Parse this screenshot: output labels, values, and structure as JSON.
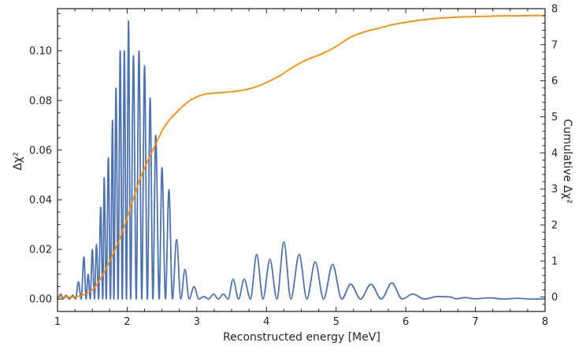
{
  "chart_data": {
    "type": "line",
    "xlabel": "Reconstructed energy [MeV]",
    "ylabel_left": "Δχ²",
    "ylabel_right": "Cumulative Δχ²",
    "xlim": [
      1,
      8
    ],
    "ylim_left": [
      -0.005,
      0.117
    ],
    "ylim_right": [
      -0.4,
      8.0
    ],
    "xticks": [
      "1",
      "2",
      "3",
      "4",
      "5",
      "6",
      "7",
      "8"
    ],
    "yticks_left": [
      "0.00",
      "0.02",
      "0.04",
      "0.06",
      "0.08",
      "0.10"
    ],
    "yticks_right": [
      "0",
      "1",
      "2",
      "3",
      "4",
      "5",
      "6",
      "7",
      "8"
    ],
    "legend": "none",
    "grid": false,
    "series": [
      {
        "axis": "left",
        "color": "#4c72b0",
        "x": [
          1.0,
          1.05,
          1.08,
          1.12,
          1.17,
          1.22,
          1.26,
          1.3,
          1.34,
          1.38,
          1.41,
          1.44,
          1.47,
          1.5,
          1.53,
          1.56,
          1.59,
          1.62,
          1.65,
          1.67,
          1.7,
          1.73,
          1.76,
          1.79,
          1.81,
          1.84,
          1.87,
          1.9,
          1.93,
          1.96,
          1.99,
          2.02,
          2.05,
          2.09,
          2.13,
          2.17,
          2.21,
          2.25,
          2.29,
          2.33,
          2.37,
          2.41,
          2.46,
          2.5,
          2.55,
          2.6,
          2.65,
          2.71,
          2.77,
          2.83,
          2.89,
          2.96,
          3.03,
          3.1,
          3.17,
          3.24,
          3.31,
          3.38,
          3.45,
          3.52,
          3.6,
          3.68,
          3.77,
          3.86,
          3.95,
          4.05,
          4.15,
          4.25,
          4.35,
          4.47,
          4.58,
          4.7,
          4.82,
          4.95,
          5.08,
          5.21,
          5.35,
          5.5,
          5.65,
          5.8,
          5.95,
          6.1,
          6.27,
          6.45,
          6.65,
          6.72,
          6.85,
          7.0,
          7.2,
          7.4,
          7.6,
          7.8,
          8.0
        ],
        "y": [
          0.0,
          0.002,
          0.0,
          0.0015,
          0.0,
          0.0015,
          0.0,
          0.007,
          0.0,
          0.017,
          0.0,
          0.01,
          0.0,
          0.02,
          0.0,
          0.022,
          0.0,
          0.037,
          0.0,
          0.049,
          0.0,
          0.057,
          0.0,
          0.072,
          0.0,
          0.085,
          0.0,
          0.1,
          0.0,
          0.1,
          0.0,
          0.112,
          0.0,
          0.098,
          0.0,
          0.1,
          0.0,
          0.094,
          0.0,
          0.081,
          0.0,
          0.066,
          0.0,
          0.053,
          0.0,
          0.044,
          0.0,
          0.024,
          0.0,
          0.012,
          0.0,
          0.005,
          0.0,
          0.001,
          0.0,
          0.002,
          0.0,
          0.002,
          0.0,
          0.008,
          0.0,
          0.008,
          0.0,
          0.018,
          0.0,
          0.016,
          0.0,
          0.023,
          0.0,
          0.018,
          0.0,
          0.015,
          0.0,
          0.014,
          0.0,
          0.006,
          0.0,
          0.006,
          0.0,
          0.0065,
          0.0,
          0.002,
          0.0,
          0.001,
          0.0008,
          0.0001,
          0.0006,
          0.0001,
          0.0005,
          0.0,
          0.0003,
          0.0,
          0.0
        ]
      },
      {
        "axis": "right",
        "color": "#ff8c00",
        "x": [
          1.0,
          1.2,
          1.35,
          1.5,
          1.6,
          1.7,
          1.8,
          1.9,
          2.0,
          2.1,
          2.2,
          2.3,
          2.4,
          2.5,
          2.6,
          2.7,
          2.8,
          2.9,
          3.0,
          3.1,
          3.2,
          3.4,
          3.6,
          3.8,
          4.0,
          4.2,
          4.4,
          4.6,
          4.8,
          5.0,
          5.2,
          5.4,
          5.6,
          5.8,
          6.0,
          6.2,
          6.4,
          6.6,
          6.8,
          7.0,
          7.2,
          7.4,
          7.6,
          7.8,
          8.0
        ],
        "y": [
          0.0,
          0.0,
          0.05,
          0.2,
          0.45,
          0.8,
          1.2,
          1.65,
          2.2,
          2.8,
          3.35,
          3.8,
          4.2,
          4.6,
          4.9,
          5.1,
          5.3,
          5.45,
          5.55,
          5.62,
          5.65,
          5.68,
          5.72,
          5.8,
          5.95,
          6.15,
          6.4,
          6.6,
          6.75,
          6.95,
          7.2,
          7.35,
          7.45,
          7.55,
          7.62,
          7.68,
          7.72,
          7.75,
          7.77,
          7.78,
          7.79,
          7.8,
          7.8,
          7.81,
          7.81
        ]
      }
    ]
  }
}
